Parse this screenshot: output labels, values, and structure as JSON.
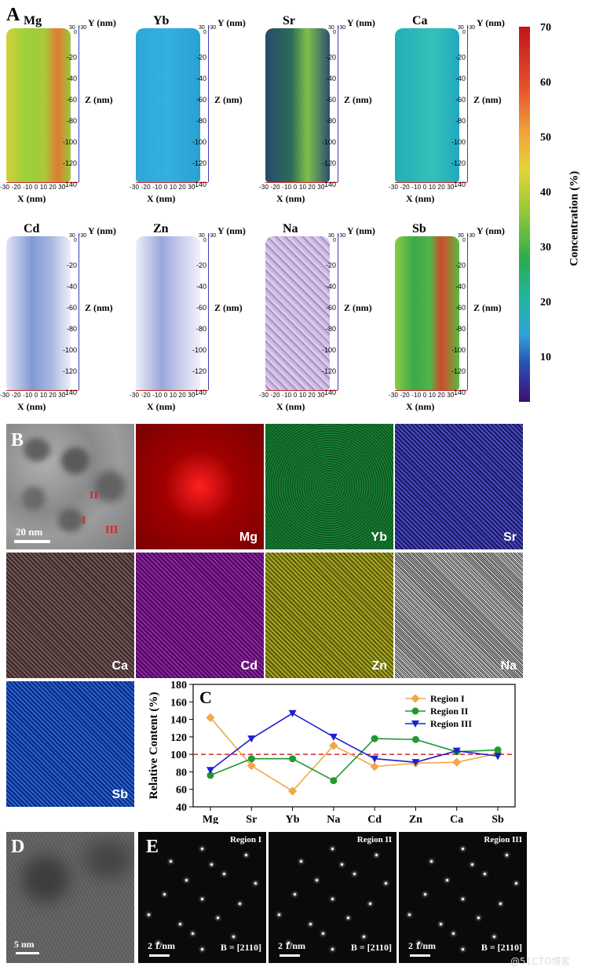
{
  "panels": {
    "A": "A",
    "B": "B",
    "C": "C",
    "D": "D",
    "E": "E"
  },
  "apt": {
    "elements": [
      "Mg",
      "Yb",
      "Sr",
      "Ca",
      "Cd",
      "Zn",
      "Na",
      "Sb"
    ],
    "z_ticks": [
      "-20",
      "-40",
      "-60",
      "-80",
      "-100",
      "-120",
      "-140"
    ],
    "top_ticks": "30",
    "top_ticks2": "0",
    "top_ticks3": "-30",
    "x_ticks": "-30 -20 -10  0  10  20  30",
    "x_label": "X (nm)",
    "y_label": "Y (nm)",
    "z_label": "Z (nm)"
  },
  "colorbar": {
    "ticks": [
      "70",
      "60",
      "50",
      "40",
      "30",
      "20",
      "10"
    ],
    "label": "Concentration (%)"
  },
  "colors": {
    "Mg": "#8fc83a",
    "Yb": "#2fa6d8",
    "Sr": "#2c6a5a",
    "Ca": "#27b0c0",
    "Cd": "#9fb0dc",
    "Zn": "#b8bde0",
    "Na": "#c6b6dc",
    "Sb": "#55b44a",
    "region1": "#f0a84a",
    "region2": "#1f9a2f",
    "region3": "#1f1fd0",
    "ref": "#d23a3a"
  },
  "eds": {
    "labels": [
      "Mg",
      "Yb",
      "Sr",
      "Ca",
      "Cd",
      "Zn",
      "Na",
      "Sb"
    ],
    "scale": "20 nm",
    "regions": [
      "I",
      "II",
      "III"
    ]
  },
  "chart_data": {
    "type": "line",
    "categories": [
      "Mg",
      "Sr",
      "Yb",
      "Na",
      "Cd",
      "Zn",
      "Ca",
      "Sb"
    ],
    "series": [
      {
        "name": "Region I",
        "values": [
          142,
          87,
          58,
          110,
          86,
          90,
          91,
          101
        ]
      },
      {
        "name": "Region II",
        "values": [
          76,
          95,
          95,
          70,
          118,
          117,
          103,
          105
        ]
      },
      {
        "name": "Region III",
        "values": [
          82,
          118,
          147,
          120,
          95,
          91,
          104,
          98
        ]
      }
    ],
    "reference_line": 100,
    "ylabel": "Relative Content (%)",
    "ylim": [
      40,
      180
    ],
    "yticks": [
      "40",
      "60",
      "80",
      "100",
      "120",
      "140",
      "160",
      "180"
    ]
  },
  "hrtem": {
    "scale": "5 nm"
  },
  "fft": {
    "regions": [
      "Region I",
      "Region II",
      "Region III"
    ],
    "scale": "2 1/nm",
    "zone": "B = [2110]"
  },
  "watermark": "@51CTO博客"
}
